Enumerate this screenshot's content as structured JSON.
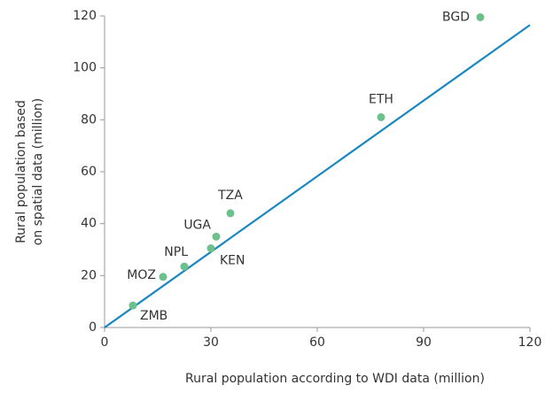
{
  "chart_data": {
    "type": "scatter",
    "xlabel": "Rural population according to WDI data (million)",
    "ylabel": [
      "Rural population based",
      "on spatial data (million)"
    ],
    "labels": [
      "BGD",
      "ETH",
      "TZA",
      "UGA",
      "KEN",
      "NPL",
      "MOZ",
      "ZMB"
    ],
    "x": [
      106,
      78,
      35.5,
      31.5,
      30,
      22.5,
      16.5,
      8
    ],
    "y": [
      119.5,
      81,
      44,
      35,
      30.5,
      23.5,
      19.5,
      8.5
    ],
    "color": "#6dbf8b",
    "fit_line": {
      "x": [
        0,
        120
      ],
      "y": [
        0,
        116.5
      ],
      "color": "#1a87c0"
    },
    "xlim": [
      0,
      120
    ],
    "xticks": [
      0,
      30,
      60,
      90,
      120
    ],
    "ylim": [
      0,
      120
    ],
    "yticks": [
      0,
      20,
      40,
      60,
      80,
      100,
      120
    ]
  }
}
